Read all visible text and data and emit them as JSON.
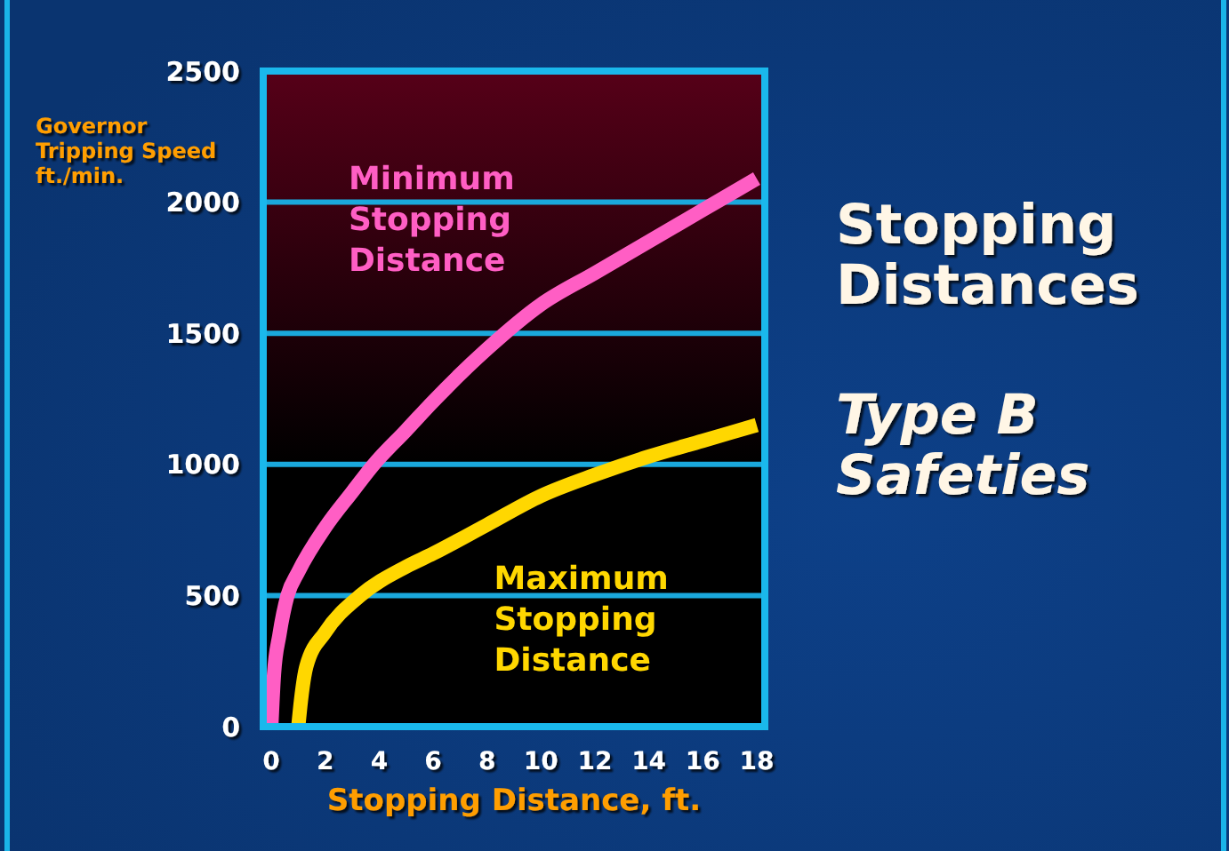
{
  "chart_data": {
    "type": "line",
    "title": "Stopping Distances",
    "subtitle": "Type B Safeties",
    "xlabel": "Stopping Distance, ft.",
    "ylabel": "Governor Tripping Speed ft./min.",
    "xlim": [
      -0.3,
      18.3
    ],
    "ylim": [
      0,
      2500
    ],
    "xticks": [
      0,
      2,
      4,
      6,
      8,
      10,
      12,
      14,
      16,
      18
    ],
    "yticks": [
      0,
      500,
      1000,
      1500,
      2000,
      2500
    ],
    "grid": "y",
    "series": [
      {
        "name": "Minimum Stopping Distance",
        "color": "#ff5ec4",
        "x": [
          0,
          0.1,
          0.3,
          0.6,
          1,
          2,
          3,
          3.8,
          5,
          6,
          8,
          10,
          12,
          14,
          16,
          18
        ],
        "values": [
          0,
          200,
          350,
          500,
          590,
          760,
          895,
          1000,
          1130,
          1240,
          1440,
          1610,
          1730,
          1850,
          1970,
          2090
        ]
      },
      {
        "name": "Maximum Stopping Distance",
        "color": "#ffd700",
        "x": [
          1,
          1.1,
          1.3,
          2,
          3.3,
          5,
          6,
          8,
          10,
          12,
          14,
          16,
          18
        ],
        "values": [
          0,
          100,
          230,
          360,
          500,
          610,
          660,
          770,
          880,
          960,
          1030,
          1090,
          1150
        ]
      }
    ]
  }
}
